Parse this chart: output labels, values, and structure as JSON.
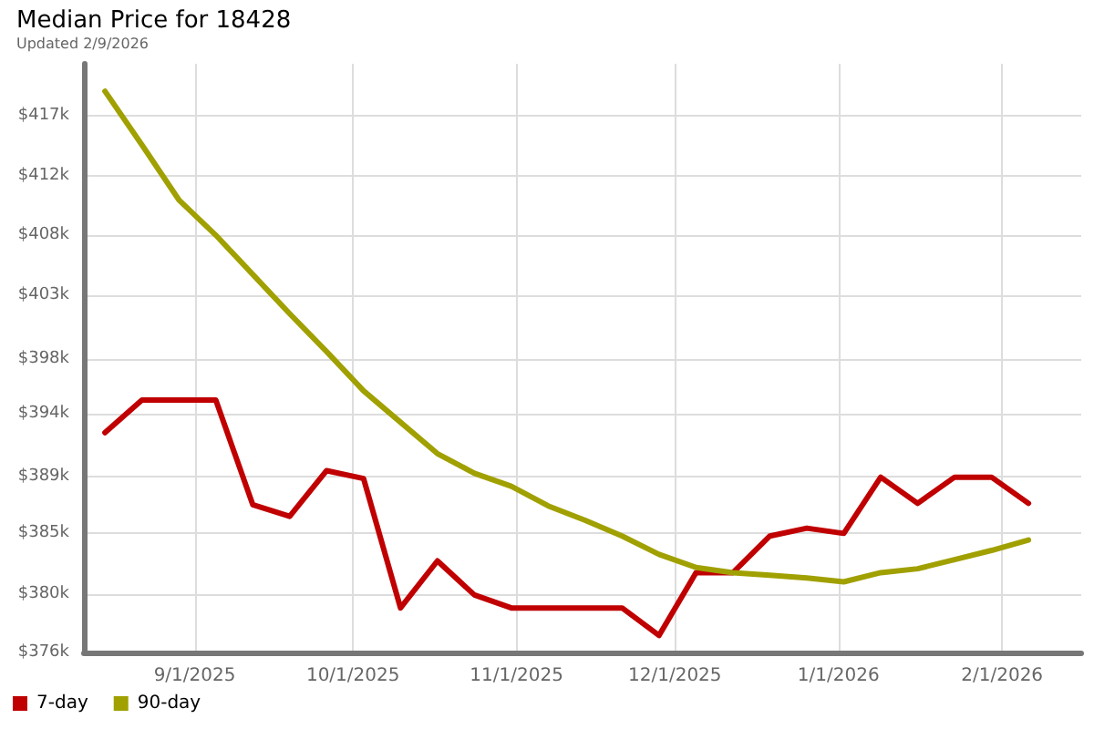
{
  "chart_data": {
    "type": "line",
    "title": "Median Price for 18428",
    "subtitle": "Updated 2/9/2026",
    "x": [
      "2025-08-15",
      "2025-08-22",
      "2025-08-29",
      "2025-09-05",
      "2025-09-12",
      "2025-09-19",
      "2025-09-26",
      "2025-10-03",
      "2025-10-10",
      "2025-10-17",
      "2025-10-24",
      "2025-10-31",
      "2025-11-07",
      "2025-11-14",
      "2025-11-21",
      "2025-11-28",
      "2025-12-05",
      "2025-12-12",
      "2025-12-19",
      "2025-12-26",
      "2026-01-02",
      "2026-01-09",
      "2026-01-16",
      "2026-01-23",
      "2026-01-30",
      "2026-02-06"
    ],
    "series": [
      {
        "name": "7-day",
        "color": "#c00000",
        "values": [
          392.8,
          395.3,
          395.3,
          395.3,
          387.3,
          386.4,
          389.9,
          389.3,
          379.4,
          383.0,
          380.4,
          379.4,
          379.4,
          379.4,
          379.4,
          377.3,
          382.1,
          382.1,
          384.9,
          385.5,
          385.1,
          389.4,
          387.4,
          389.4,
          389.4,
          387.4
        ]
      },
      {
        "name": "90-day",
        "color": "#a0a000",
        "values": [
          418.9,
          414.8,
          410.6,
          407.9,
          404.9,
          401.9,
          399.0,
          396.0,
          393.6,
          391.2,
          389.7,
          388.7,
          387.2,
          386.1,
          384.9,
          383.5,
          382.5,
          382.1,
          381.9,
          381.7,
          381.4,
          382.1,
          382.4,
          383.1,
          383.8,
          384.6
        ]
      }
    ],
    "xlim": [
      "2025-08-11",
      "2026-02-16"
    ],
    "xticks": [
      {
        "value": "2025-09-01",
        "label": "9/1/2025"
      },
      {
        "value": "2025-10-01",
        "label": "10/1/2025"
      },
      {
        "value": "2025-11-01",
        "label": "11/1/2025"
      },
      {
        "value": "2025-12-01",
        "label": "12/1/2025"
      },
      {
        "value": "2026-01-01",
        "label": "1/1/2026"
      },
      {
        "value": "2026-02-01",
        "label": "2/1/2026"
      }
    ],
    "ylim": [
      376,
      421
    ],
    "yticks": [
      {
        "value": 376,
        "label": "$376k"
      },
      {
        "value": 380.45,
        "label": "$380k"
      },
      {
        "value": 385.11,
        "label": "$385k"
      },
      {
        "value": 389.45,
        "label": "$389k"
      },
      {
        "value": 394.22,
        "label": "$394k"
      },
      {
        "value": 398.45,
        "label": "$398k"
      },
      {
        "value": 403.33,
        "label": "$403k"
      },
      {
        "value": 407.89,
        "label": "$408k"
      },
      {
        "value": 412.44,
        "label": "$412k"
      },
      {
        "value": 417,
        "label": "$417k"
      }
    ],
    "grid": true,
    "legend": "bottom left",
    "marker": "none",
    "line_style": "solid"
  }
}
